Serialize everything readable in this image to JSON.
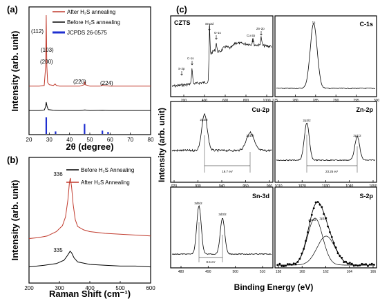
{
  "panel_labels": {
    "a": "(a)",
    "b": "(b)",
    "c": "(c)"
  },
  "colors": {
    "after": "#c0392b",
    "before": "#000000",
    "ref": "#1f2fd0"
  },
  "chart_data": [
    {
      "id": "xrd",
      "type": "line",
      "xlabel": "2θ (degree)",
      "ylabel": "Intensity (arb. unit)",
      "xlim": [
        20,
        80
      ],
      "xticks": [
        "20",
        "30",
        "40",
        "50",
        "60",
        "70",
        "80"
      ],
      "legend_placement": "top-right",
      "legend": [
        "After H₂S annealing",
        "Before H₂S annealing",
        "JCPDS 26-0575"
      ],
      "series": [
        {
          "name": "After H₂S annealing",
          "color": "#c0392b",
          "x": [
            20,
            25,
            27.5,
            28.2,
            28.5,
            28.8,
            29.2,
            30,
            32,
            32.9,
            33.5,
            35,
            40,
            45,
            47.2,
            47.5,
            47.8,
            50,
            55,
            56,
            56.2,
            56.4,
            60,
            65,
            70,
            75,
            80
          ],
          "y": [
            0.03,
            0.03,
            0.04,
            0.3,
            1.0,
            0.3,
            0.08,
            0.05,
            0.04,
            0.06,
            0.04,
            0.03,
            0.03,
            0.03,
            0.05,
            0.09,
            0.05,
            0.03,
            0.03,
            0.04,
            0.05,
            0.04,
            0.03,
            0.03,
            0.03,
            0.03,
            0.03
          ]
        },
        {
          "name": "Before H₂S annealing",
          "color": "#000000",
          "x": [
            20,
            25,
            27.6,
            28.2,
            28.5,
            28.9,
            29.5,
            32,
            35,
            45,
            47.5,
            50,
            56.3,
            60,
            70,
            80
          ],
          "y": [
            0.0,
            0.0,
            0.02,
            0.15,
            0.3,
            0.15,
            0.03,
            0.01,
            0.0,
            0.0,
            0.02,
            0.0,
            0.01,
            0.0,
            0.0,
            0.0
          ]
        }
      ],
      "reference_sticks": {
        "x": [
          28.5,
          33.1,
          47.4,
          56.2,
          59.0
        ],
        "h": [
          1.0,
          0.15,
          0.6,
          0.2,
          0.12
        ]
      },
      "peak_labels": [
        {
          "text": "(112)",
          "x": 28.5
        },
        {
          "text": "(103)",
          "x": 31.0
        },
        {
          "text": "(200)",
          "x": 32.9
        },
        {
          "text": "(220)",
          "x": 47.4
        },
        {
          "text": "(224)",
          "x": 58.5
        }
      ]
    },
    {
      "id": "raman",
      "type": "line",
      "xlabel": "Raman Shift (cm⁻¹)",
      "ylabel": "Intensity (arb. unit)",
      "xlim": [
        200,
        600
      ],
      "xticks": [
        "200",
        "300",
        "400",
        "500",
        "600"
      ],
      "legend_placement": "top-right",
      "legend": [
        "Before H₂S Annealing",
        "After H₂S Annealing"
      ],
      "series": [
        {
          "name": "After H₂S Annealing",
          "color": "#c0392b",
          "x": [
            200,
            230,
            260,
            290,
            310,
            320,
            328,
            333,
            336,
            340,
            345,
            352,
            360,
            380,
            400,
            450,
            500,
            550,
            600
          ],
          "y": [
            0.3,
            0.31,
            0.33,
            0.38,
            0.45,
            0.55,
            0.75,
            0.95,
            1.0,
            0.9,
            0.7,
            0.52,
            0.44,
            0.4,
            0.38,
            0.36,
            0.35,
            0.34,
            0.33
          ]
        },
        {
          "name": "Before H₂S Annealing",
          "color": "#000000",
          "x": [
            200,
            250,
            290,
            315,
            325,
            332,
            335,
            340,
            348,
            360,
            400,
            450,
            500,
            550,
            600
          ],
          "y": [
            0.02,
            0.04,
            0.06,
            0.1,
            0.15,
            0.19,
            0.21,
            0.19,
            0.13,
            0.08,
            0.05,
            0.04,
            0.03,
            0.03,
            0.02
          ]
        }
      ],
      "peak_labels": [
        {
          "text": "336",
          "x": 336
        },
        {
          "text": "335",
          "x": 335
        }
      ]
    },
    {
      "id": "survey",
      "type": "line",
      "title": "CZTS",
      "xticks": [
        "200",
        "400",
        "600",
        "800",
        "1000"
      ],
      "annotations": [
        "S-2p",
        "C-1s",
        "Sn-3d",
        "O-1s",
        "Cu-2p",
        "Zn-2p"
      ]
    },
    {
      "id": "c1s",
      "type": "line",
      "title": "C-1s",
      "peak_labels": [
        "1s"
      ],
      "xticks": [
        "275",
        "280",
        "285",
        "290",
        "295",
        "300"
      ]
    },
    {
      "id": "cu2p",
      "type": "line",
      "title": "Cu-2p",
      "peak_labels": [
        "2p3/2",
        "2p1/2"
      ],
      "split_label": "19.7 eV",
      "xticks": [
        "920",
        "930",
        "940",
        "950",
        "960"
      ]
    },
    {
      "id": "zn2p",
      "type": "line",
      "title": "Zn-2p",
      "peak_labels": [
        "2p3/2",
        "2p1/2"
      ],
      "split_label": "23.25 eV",
      "xticks": [
        "1010",
        "1020",
        "1030",
        "1040",
        "1050"
      ]
    },
    {
      "id": "sn3d",
      "type": "line",
      "title": "Sn-3d",
      "peak_labels": [
        "3d5/2",
        "3d3/2"
      ],
      "split_label": "8.5 eV",
      "xticks": [
        "480",
        "490",
        "500",
        "510"
      ]
    },
    {
      "id": "s2p",
      "type": "scatter",
      "title": "S-2p",
      "peak_labels": [
        "2p3/2",
        "2p1/2"
      ],
      "xticks": [
        "158",
        "160",
        "162",
        "164",
        "166"
      ]
    }
  ],
  "panel_c": {
    "xlabel": "Binding Energy (eV)",
    "ylabel": "Intensity (arb. unit)"
  }
}
